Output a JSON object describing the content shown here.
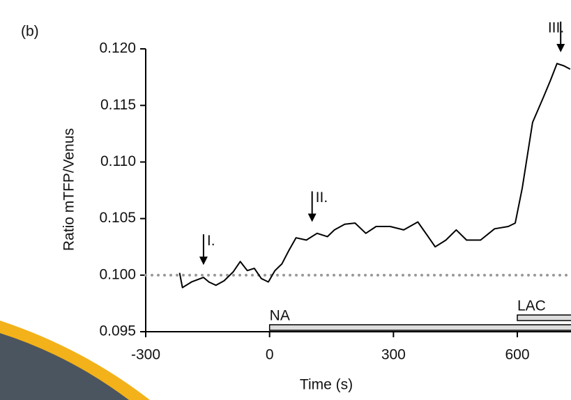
{
  "chart_data": {
    "type": "line",
    "panel_label": "(b)",
    "x_label": "Time (s)",
    "y_label": "Ratio mTFP/Venus",
    "xlim": [
      -300,
      730
    ],
    "ylim": [
      0.095,
      0.1205
    ],
    "xticks": [
      -300,
      0,
      300,
      600
    ],
    "yticks": [
      {
        "value": 0.095,
        "label": "0.095"
      },
      {
        "value": 0.1,
        "label": "0.100"
      },
      {
        "value": 0.105,
        "label": "0.105"
      },
      {
        "value": 0.11,
        "label": "0.110"
      },
      {
        "value": 0.115,
        "label": "0.115"
      },
      {
        "value": 0.12,
        "label": "0.120"
      }
    ],
    "reference_line": {
      "y": 0.1,
      "color": "#999999"
    },
    "x": [
      -218,
      -211,
      -189,
      -160,
      -147,
      -130,
      -110,
      -88,
      -71,
      -54,
      -37,
      -20,
      -3,
      13,
      30,
      47,
      64,
      89,
      115,
      140,
      157,
      182,
      207,
      233,
      258,
      292,
      325,
      359,
      384,
      401,
      427,
      452,
      477,
      511,
      545,
      578,
      595,
      612,
      637,
      663,
      680,
      696,
      713,
      728
    ],
    "series": [
      {
        "color": "#000000",
        "values": [
          0.1002,
          0.0989,
          0.0994,
          0.0998,
          0.0994,
          0.0991,
          0.0995,
          0.1003,
          0.1012,
          0.1004,
          0.1006,
          0.0997,
          0.0994,
          0.1004,
          0.101,
          0.1022,
          0.1033,
          0.1031,
          0.1037,
          0.1034,
          0.104,
          0.1045,
          0.1046,
          0.1037,
          0.1043,
          0.1043,
          0.104,
          0.1047,
          0.1034,
          0.1025,
          0.1031,
          0.104,
          0.1031,
          0.1031,
          0.1041,
          0.1043,
          0.1046,
          0.1077,
          0.1135,
          0.1157,
          0.1172,
          0.1187,
          0.1185,
          0.1182
        ]
      }
    ],
    "bars": [
      {
        "label": "NA",
        "start": 0
      },
      {
        "label": "LAC",
        "start": 600
      }
    ],
    "annotations": [
      {
        "label": "I.",
        "x": -160,
        "y": 0.1009
      },
      {
        "label": "II.",
        "x": 103,
        "y": 0.1047
      },
      {
        "label": "III.",
        "x": 705,
        "y": 0.1197
      }
    ]
  }
}
